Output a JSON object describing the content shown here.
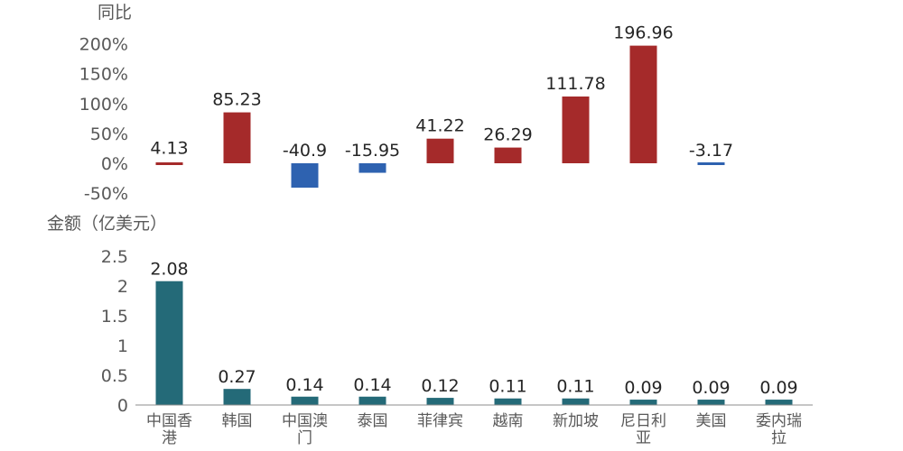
{
  "chart_data": [
    {
      "type": "bar",
      "title": "同比",
      "y_axis_title": "同比",
      "y_ticks": [
        "200%",
        "150%",
        "100%",
        "50%",
        "0%",
        "-50%"
      ],
      "ylim": [
        -50,
        200
      ],
      "categories": [
        "中国香港",
        "韩国",
        "中国澳门",
        "泰国",
        "菲律宾",
        "越南",
        "新加坡",
        "尼日利亚",
        "美国",
        "委内瑞拉"
      ],
      "values": [
        4.13,
        85.23,
        -40.9,
        -15.95,
        41.22,
        26.29,
        111.78,
        196.96,
        -3.17,
        null
      ],
      "labels": [
        "4.13",
        "85.23",
        "-40.9",
        "-15.95",
        "41.22",
        "26.29",
        "111.78",
        "196.96",
        "-3.17",
        ""
      ],
      "positive_color": "#A52A2A",
      "negative_color": "#2E62B0"
    },
    {
      "type": "bar",
      "title": "金额（亿美元）",
      "y_axis_title": "金额（亿美元）",
      "y_ticks": [
        "2.5",
        "2",
        "1.5",
        "1",
        "0.5",
        "0"
      ],
      "ylim": [
        0,
        2.5
      ],
      "categories": [
        "中国香港",
        "韩国",
        "中国澳门",
        "泰国",
        "菲律宾",
        "越南",
        "新加坡",
        "尼日利亚",
        "美国",
        "委内瑞拉"
      ],
      "category_label_lines": [
        [
          "中国香",
          "港"
        ],
        [
          "韩国"
        ],
        [
          "中国澳",
          "门"
        ],
        [
          "泰国"
        ],
        [
          "菲律宾"
        ],
        [
          "越南"
        ],
        [
          "新加坡"
        ],
        [
          "尼日利",
          "亚"
        ],
        [
          "美国"
        ],
        [
          "委内瑞",
          "拉"
        ]
      ],
      "values": [
        2.08,
        0.27,
        0.14,
        0.14,
        0.12,
        0.11,
        0.11,
        0.09,
        0.09,
        0.09
      ],
      "labels": [
        "2.08",
        "0.27",
        "0.14",
        "0.14",
        "0.12",
        "0.11",
        "0.11",
        "0.09",
        "0.09",
        "0.09"
      ],
      "color": "#246A78"
    }
  ]
}
